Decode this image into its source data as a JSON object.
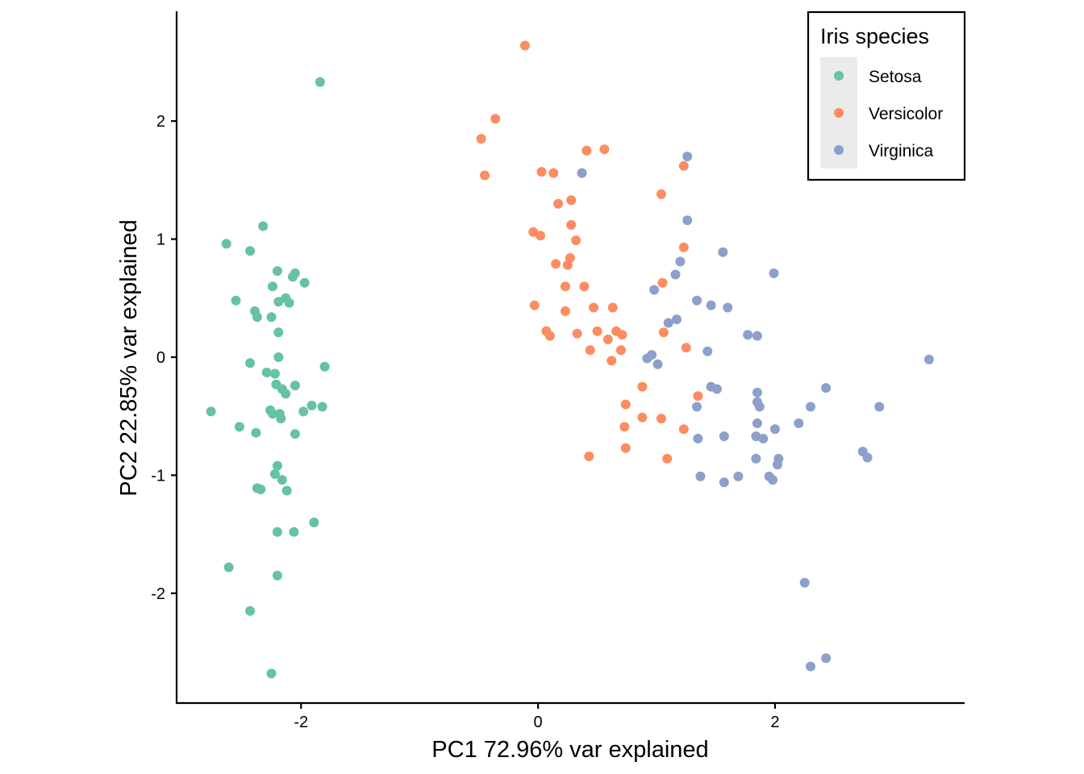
{
  "chart_data": {
    "type": "scatter",
    "xlabel": "PC1 72.96% var explained",
    "ylabel": "PC2 22.85% var explained",
    "xlim": [
      -3.05,
      3.6
    ],
    "ylim": [
      -2.93,
      2.93
    ],
    "x_ticks": [
      -2,
      0,
      2
    ],
    "y_ticks": [
      -2,
      -1,
      0,
      1,
      2
    ],
    "x_tick_labels": [
      "-2",
      "0",
      "2"
    ],
    "y_tick_labels": [
      "-2",
      "-1",
      "0",
      "1",
      "2"
    ],
    "grid": false,
    "legend": {
      "title": "Iris species",
      "position": "top-right"
    },
    "series": [
      {
        "name": "Setosa",
        "color": "#66c2a5",
        "points": [
          [
            -1.84,
            2.33
          ],
          [
            -2.32,
            1.11
          ],
          [
            -2.63,
            0.96
          ],
          [
            -2.43,
            0.9
          ],
          [
            -2.2,
            0.73
          ],
          [
            -2.05,
            0.71
          ],
          [
            -2.07,
            0.68
          ],
          [
            -1.97,
            0.63
          ],
          [
            -2.24,
            0.6
          ],
          [
            -2.13,
            0.5
          ],
          [
            -2.19,
            0.47
          ],
          [
            -2.1,
            0.46
          ],
          [
            -2.55,
            0.48
          ],
          [
            -2.39,
            0.39
          ],
          [
            -2.37,
            0.34
          ],
          [
            -2.25,
            0.34
          ],
          [
            -2.19,
            0.21
          ],
          [
            -2.19,
            0.0
          ],
          [
            -2.43,
            -0.05
          ],
          [
            -1.8,
            -0.08
          ],
          [
            -2.29,
            -0.13
          ],
          [
            -2.22,
            -0.14
          ],
          [
            -2.21,
            -0.23
          ],
          [
            -2.05,
            -0.24
          ],
          [
            -2.16,
            -0.27
          ],
          [
            -2.13,
            -0.31
          ],
          [
            -1.91,
            -0.41
          ],
          [
            -1.82,
            -0.42
          ],
          [
            -2.26,
            -0.45
          ],
          [
            -2.24,
            -0.48
          ],
          [
            -2.18,
            -0.48
          ],
          [
            -1.98,
            -0.46
          ],
          [
            -2.76,
            -0.46
          ],
          [
            -2.17,
            -0.52
          ],
          [
            -2.52,
            -0.59
          ],
          [
            -2.38,
            -0.64
          ],
          [
            -2.05,
            -0.65
          ],
          [
            -2.2,
            -0.92
          ],
          [
            -2.22,
            -0.99
          ],
          [
            -2.16,
            -1.04
          ],
          [
            -2.37,
            -1.11
          ],
          [
            -2.34,
            -1.12
          ],
          [
            -2.12,
            -1.13
          ],
          [
            -1.89,
            -1.4
          ],
          [
            -2.2,
            -1.48
          ],
          [
            -2.06,
            -1.48
          ],
          [
            -2.61,
            -1.78
          ],
          [
            -2.2,
            -1.85
          ],
          [
            -2.43,
            -2.15
          ],
          [
            -2.25,
            -2.68
          ]
        ]
      },
      {
        "name": "Versicolor",
        "color": "#fc8d62",
        "points": [
          [
            -0.11,
            2.64
          ],
          [
            -0.36,
            2.02
          ],
          [
            -0.48,
            1.85
          ],
          [
            -0.45,
            1.54
          ],
          [
            0.41,
            1.75
          ],
          [
            0.56,
            1.76
          ],
          [
            0.03,
            1.57
          ],
          [
            0.13,
            1.56
          ],
          [
            1.23,
            1.62
          ],
          [
            0.17,
            1.3
          ],
          [
            0.28,
            1.33
          ],
          [
            1.04,
            1.38
          ],
          [
            0.28,
            1.12
          ],
          [
            -0.04,
            1.06
          ],
          [
            0.02,
            1.03
          ],
          [
            0.32,
            0.99
          ],
          [
            1.23,
            0.93
          ],
          [
            0.27,
            0.84
          ],
          [
            0.15,
            0.79
          ],
          [
            0.25,
            0.78
          ],
          [
            1.05,
            0.63
          ],
          [
            0.23,
            0.6
          ],
          [
            0.39,
            0.6
          ],
          [
            -0.03,
            0.44
          ],
          [
            0.47,
            0.42
          ],
          [
            0.63,
            0.42
          ],
          [
            0.23,
            0.39
          ],
          [
            0.07,
            0.22
          ],
          [
            0.33,
            0.2
          ],
          [
            0.5,
            0.22
          ],
          [
            0.66,
            0.22
          ],
          [
            0.1,
            0.18
          ],
          [
            1.06,
            0.21
          ],
          [
            0.71,
            0.19
          ],
          [
            0.59,
            0.15
          ],
          [
            0.44,
            0.06
          ],
          [
            0.7,
            0.06
          ],
          [
            1.25,
            0.08
          ],
          [
            0.62,
            -0.03
          ],
          [
            0.88,
            -0.25
          ],
          [
            1.35,
            -0.33
          ],
          [
            0.74,
            -0.4
          ],
          [
            0.88,
            -0.51
          ],
          [
            1.04,
            -0.52
          ],
          [
            0.73,
            -0.59
          ],
          [
            1.23,
            -0.61
          ],
          [
            0.74,
            -0.77
          ],
          [
            0.43,
            -0.84
          ],
          [
            1.09,
            -0.86
          ]
        ]
      },
      {
        "name": "Virginica",
        "color": "#8da0cb",
        "points": [
          [
            1.26,
            1.7
          ],
          [
            0.37,
            1.56
          ],
          [
            1.26,
            1.16
          ],
          [
            1.56,
            0.89
          ],
          [
            1.2,
            0.81
          ],
          [
            1.99,
            0.71
          ],
          [
            1.16,
            0.7
          ],
          [
            0.98,
            0.57
          ],
          [
            1.34,
            0.48
          ],
          [
            1.46,
            0.44
          ],
          [
            1.6,
            0.42
          ],
          [
            1.17,
            0.32
          ],
          [
            1.1,
            0.29
          ],
          [
            1.77,
            0.19
          ],
          [
            1.85,
            0.18
          ],
          [
            1.43,
            0.05
          ],
          [
            0.96,
            0.02
          ],
          [
            0.92,
            -0.01
          ],
          [
            1.01,
            -0.06
          ],
          [
            3.3,
            -0.02
          ],
          [
            1.46,
            -0.25
          ],
          [
            1.51,
            -0.27
          ],
          [
            1.85,
            -0.3
          ],
          [
            2.43,
            -0.26
          ],
          [
            1.85,
            -0.38
          ],
          [
            1.87,
            -0.42
          ],
          [
            1.34,
            -0.42
          ],
          [
            2.3,
            -0.42
          ],
          [
            2.88,
            -0.42
          ],
          [
            1.85,
            -0.56
          ],
          [
            2.2,
            -0.56
          ],
          [
            2.0,
            -0.61
          ],
          [
            1.35,
            -0.69
          ],
          [
            1.57,
            -0.67
          ],
          [
            1.84,
            -0.67
          ],
          [
            1.9,
            -0.69
          ],
          [
            2.74,
            -0.8
          ],
          [
            2.78,
            -0.85
          ],
          [
            1.84,
            -0.86
          ],
          [
            2.03,
            -0.86
          ],
          [
            2.02,
            -0.91
          ],
          [
            1.37,
            -1.01
          ],
          [
            1.69,
            -1.01
          ],
          [
            1.95,
            -1.01
          ],
          [
            1.98,
            -1.04
          ],
          [
            1.57,
            -1.06
          ],
          [
            2.25,
            -1.91
          ],
          [
            2.43,
            -2.55
          ],
          [
            2.3,
            -2.62
          ]
        ]
      }
    ]
  }
}
